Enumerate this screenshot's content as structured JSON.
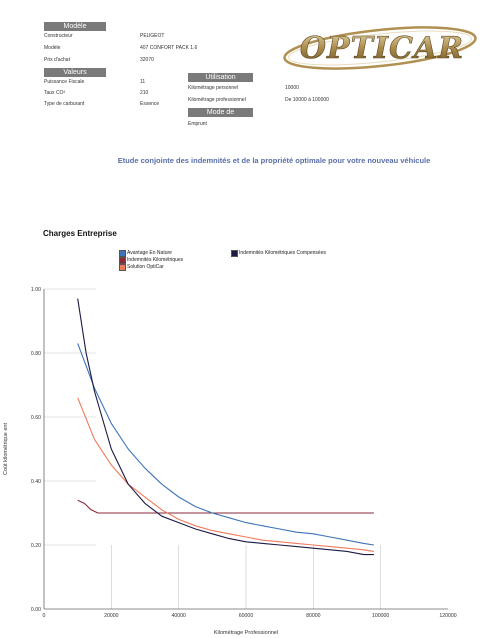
{
  "modele_section": {
    "header": "Modèle",
    "rows": [
      {
        "label": "Constructeur",
        "value": "PEUGEOT"
      },
      {
        "label": "Modèle",
        "value": "407 CONFORT PACK 1.6"
      },
      {
        "label": "Prix d'achat",
        "value": "32070"
      }
    ]
  },
  "valeurs_section": {
    "header": "Valeurs",
    "rows": [
      {
        "label": "Puissance Fiscale",
        "value": "11"
      },
      {
        "label": "Taux CO²",
        "value": "210"
      },
      {
        "label": "Type de carburant",
        "value": "Essence"
      }
    ]
  },
  "utilisation_section": {
    "header": "Utilisation",
    "rows": [
      {
        "label": "Kilométrage personnel",
        "value": "10000"
      },
      {
        "label": "Kilométrage professionnel",
        "value": "De 10000 à 100000"
      }
    ]
  },
  "financement_section": {
    "header": "Mode de Financement",
    "value": "Emprunt"
  },
  "logo": {
    "text": "OPTICAR"
  },
  "study_title": "Etude conjointe des indemnités et de la propriété optimale pour votre nouveau véhicule",
  "chart_title": "Charges Entreprise",
  "chart_data": {
    "type": "line",
    "title": "Charges Entreprise",
    "xlabel": "Kilométrage Professionnel",
    "ylabel": "Coût kilométrique ent",
    "xlim": [
      0,
      120000
    ],
    "ylim": [
      0,
      1.0
    ],
    "x_ticks": [
      "0",
      "20000",
      "40000",
      "60000",
      "80000",
      "100000",
      "120000"
    ],
    "y_ticks": [
      "0.00",
      "0.20",
      "0.40",
      "0.60",
      "0.80",
      "1.00"
    ],
    "grid": "partial",
    "legend_position": "top",
    "series": [
      {
        "name": "Avantage En Nature",
        "color": "#3d74b8",
        "x": [
          10000,
          15000,
          20000,
          25000,
          30000,
          35000,
          40000,
          45000,
          50000,
          55000,
          60000,
          65000,
          70000,
          75000,
          80000,
          85000,
          90000,
          95000,
          98000
        ],
        "y": [
          0.83,
          0.69,
          0.58,
          0.5,
          0.44,
          0.39,
          0.35,
          0.32,
          0.3,
          0.285,
          0.27,
          0.26,
          0.25,
          0.24,
          0.235,
          0.225,
          0.215,
          0.205,
          0.2
        ]
      },
      {
        "name": "Indemnités Kilométriques Compensées",
        "color": "#1a1a44",
        "x": [
          10000,
          12500,
          15000,
          20000,
          25000,
          30000,
          35000,
          40000,
          45000,
          50000,
          55000,
          60000,
          65000,
          70000,
          75000,
          80000,
          85000,
          90000,
          95000,
          98000
        ],
        "y": [
          0.97,
          0.8,
          0.68,
          0.5,
          0.39,
          0.33,
          0.29,
          0.27,
          0.25,
          0.235,
          0.22,
          0.21,
          0.205,
          0.2,
          0.195,
          0.19,
          0.185,
          0.18,
          0.17,
          0.17
        ]
      },
      {
        "name": "Indemnités Kilométriques",
        "color": "#8a2a3a",
        "x": [
          10000,
          12000,
          14000,
          16000,
          18000,
          30000,
          50000,
          70000,
          90000,
          98000
        ],
        "y": [
          0.34,
          0.33,
          0.31,
          0.3,
          0.3,
          0.3,
          0.3,
          0.3,
          0.3,
          0.3
        ]
      },
      {
        "name": "Solution OptiCar",
        "color": "#f07a5a",
        "x": [
          10000,
          15000,
          20000,
          25000,
          30000,
          35000,
          40000,
          45000,
          50000,
          55000,
          60000,
          65000,
          70000,
          75000,
          80000,
          85000,
          90000,
          95000,
          98000
        ],
        "y": [
          0.66,
          0.53,
          0.45,
          0.39,
          0.35,
          0.31,
          0.28,
          0.26,
          0.245,
          0.235,
          0.225,
          0.215,
          0.21,
          0.205,
          0.2,
          0.195,
          0.19,
          0.185,
          0.18
        ]
      }
    ]
  }
}
